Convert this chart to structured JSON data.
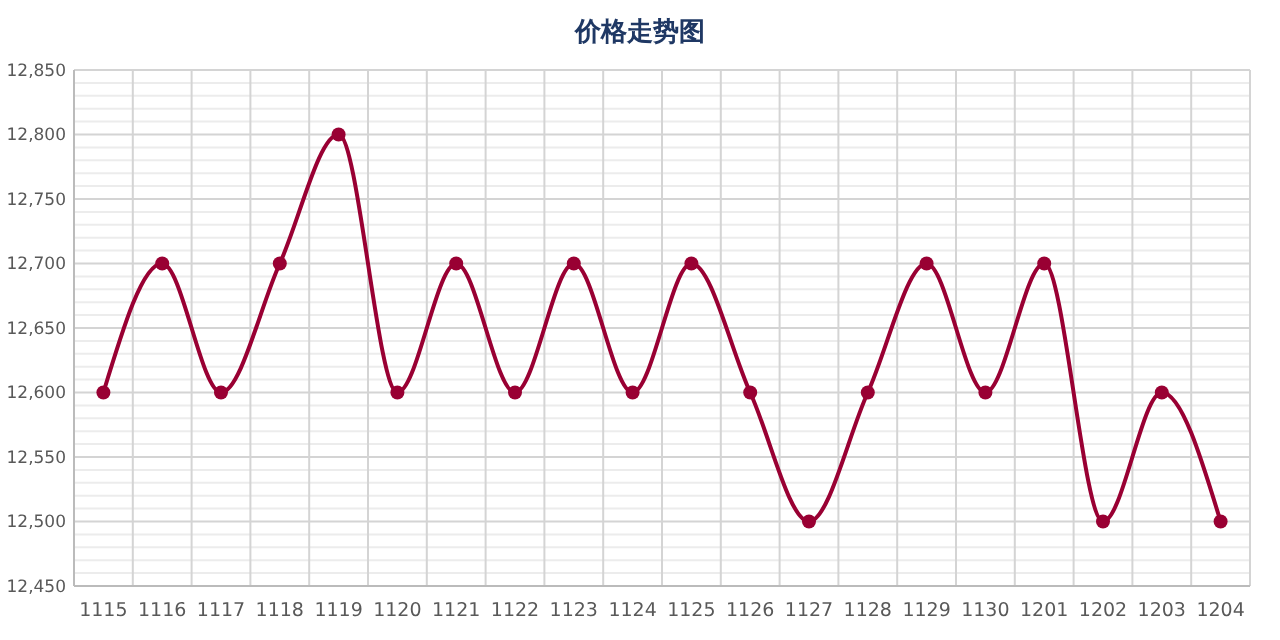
{
  "chart_data": {
    "type": "line",
    "title": "价格走势图",
    "categories": [
      "1115",
      "1116",
      "1117",
      "1118",
      "1119",
      "1120",
      "1121",
      "1122",
      "1123",
      "1124",
      "1125",
      "1126",
      "1127",
      "1128",
      "1129",
      "1130",
      "1201",
      "1202",
      "1203",
      "1204"
    ],
    "series": [
      {
        "color": "#990033",
        "values": [
          12600,
          12700,
          12600,
          12700,
          12800,
          12600,
          12700,
          12600,
          12700,
          12600,
          12700,
          12600,
          12500,
          12600,
          12700,
          12600,
          12700,
          12500,
          12600,
          12500
        ]
      }
    ],
    "ylim": [
      12450,
      12850
    ],
    "yticks": [
      {
        "value": 12450,
        "label": "12,450"
      },
      {
        "value": 12500,
        "label": "12,500"
      },
      {
        "value": 12550,
        "label": "12,550"
      },
      {
        "value": 12600,
        "label": "12,600"
      },
      {
        "value": 12650,
        "label": "12,650"
      },
      {
        "value": 12700,
        "label": "12,700"
      },
      {
        "value": 12750,
        "label": "12,750"
      },
      {
        "value": 12800,
        "label": "12,800"
      },
      {
        "value": 12850,
        "label": "12,850"
      }
    ],
    "grid": true,
    "marker": "circle",
    "line_style": "solid"
  }
}
